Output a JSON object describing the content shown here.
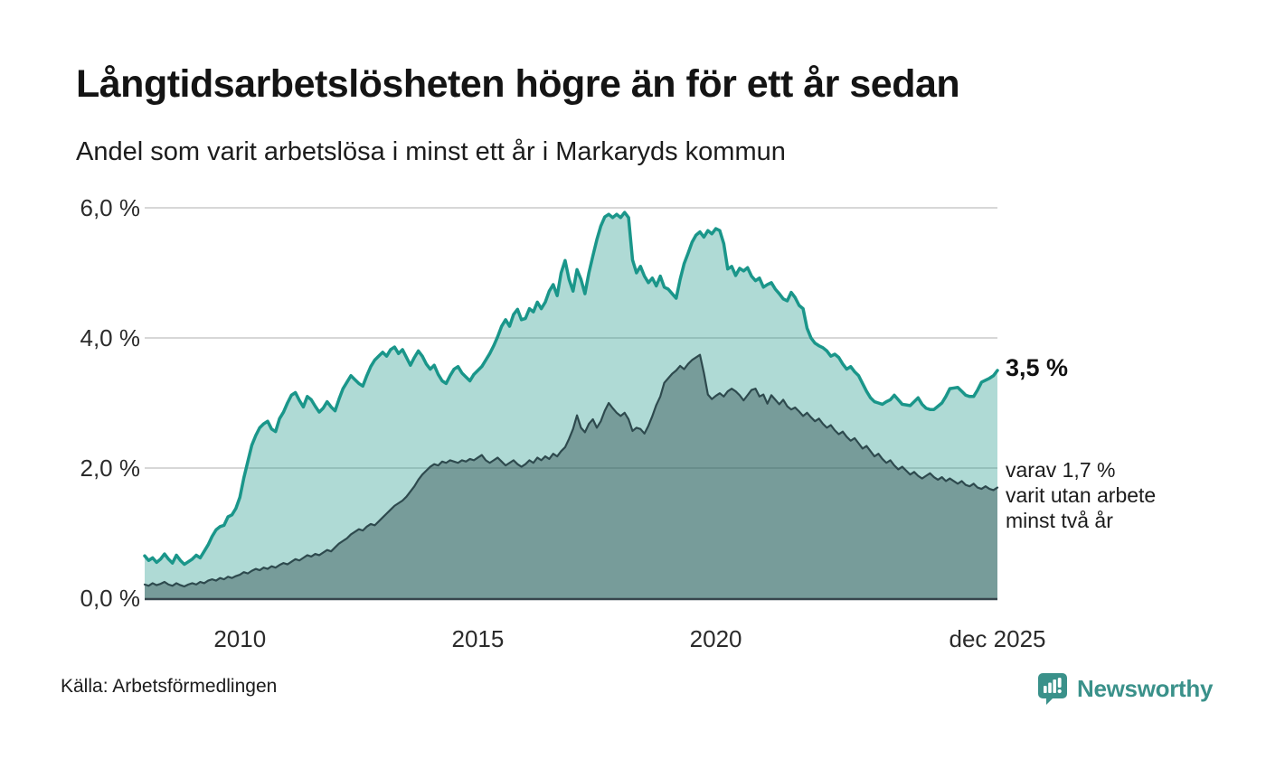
{
  "header": {
    "title": "Långtidsarbetslösheten högre än för ett år sedan",
    "subtitle": "Andel som varit arbetslösa i minst ett år i Markaryds kommun"
  },
  "annotations": {
    "latest_primary": "3,5 %",
    "latest_secondary": "varav 1,7 %\nvarit utan arbete\nminst två år"
  },
  "source": {
    "label": "Källa: Arbetsförmedlingen"
  },
  "brand": {
    "name": "Newsworthy",
    "color": "#3a918a"
  },
  "chart_data": {
    "type": "area",
    "title": "Andel som varit arbetslösa i minst ett år i Markaryds kommun",
    "x_unit": "month",
    "x_start": "2008-01",
    "x_end": "2025-12",
    "ylim": [
      0,
      6
    ],
    "grid": true,
    "yticks": [
      {
        "label": "0,0 %",
        "value": 0
      },
      {
        "label": "2,0 %",
        "value": 2
      },
      {
        "label": "4,0 %",
        "value": 4
      },
      {
        "label": "6,0 %",
        "value": 6
      }
    ],
    "xticks": [
      {
        "label": "2010",
        "month": "2010-01"
      },
      {
        "label": "2015",
        "month": "2015-01"
      },
      {
        "label": "2020",
        "month": "2020-01"
      },
      {
        "label": "dec 2025",
        "month": "2025-12"
      }
    ],
    "latest": {
      "minst_ett_ar": 3.5,
      "minst_tva_ar": 1.7
    },
    "colors": {
      "line_ett_ar": "#1a968a",
      "fill_ett_ar": "rgba(26,150,135,0.35)",
      "line_tva_ar": "#2e4a4e",
      "fill_tva_ar": "rgba(42,72,75,0.42)",
      "gridline": "#d7d7d7",
      "axis": "#37454c"
    },
    "series": [
      {
        "name": "Andel arbetslösa minst ett år",
        "color": "#1a968a",
        "fill": "rgba(26,150,135,0.35)",
        "stroke_width": 3.5,
        "values": [
          0.65,
          0.58,
          0.62,
          0.55,
          0.6,
          0.68,
          0.6,
          0.54,
          0.66,
          0.58,
          0.52,
          0.56,
          0.6,
          0.66,
          0.62,
          0.72,
          0.82,
          0.95,
          1.05,
          1.1,
          1.12,
          1.25,
          1.28,
          1.38,
          1.55,
          1.85,
          2.1,
          2.35,
          2.5,
          2.62,
          2.68,
          2.72,
          2.6,
          2.56,
          2.76,
          2.86,
          3.0,
          3.12,
          3.16,
          3.04,
          2.94,
          3.1,
          3.05,
          2.95,
          2.86,
          2.92,
          3.02,
          2.94,
          2.88,
          3.06,
          3.22,
          3.32,
          3.42,
          3.36,
          3.3,
          3.26,
          3.42,
          3.56,
          3.66,
          3.72,
          3.78,
          3.72,
          3.82,
          3.86,
          3.76,
          3.82,
          3.7,
          3.58,
          3.7,
          3.8,
          3.72,
          3.6,
          3.52,
          3.58,
          3.44,
          3.34,
          3.3,
          3.42,
          3.52,
          3.56,
          3.46,
          3.4,
          3.34,
          3.44,
          3.5,
          3.56,
          3.66,
          3.76,
          3.88,
          4.02,
          4.18,
          4.28,
          4.18,
          4.36,
          4.44,
          4.28,
          4.3,
          4.45,
          4.4,
          4.55,
          4.45,
          4.55,
          4.72,
          4.82,
          4.65,
          5.0,
          5.19,
          4.9,
          4.72,
          5.05,
          4.9,
          4.68,
          5.0,
          5.26,
          5.51,
          5.72,
          5.86,
          5.9,
          5.85,
          5.9,
          5.85,
          5.93,
          5.85,
          5.2,
          5.0,
          5.1,
          4.95,
          4.85,
          4.92,
          4.8,
          4.95,
          4.78,
          4.75,
          4.68,
          4.61,
          4.9,
          5.14,
          5.3,
          5.47,
          5.58,
          5.63,
          5.55,
          5.65,
          5.6,
          5.68,
          5.65,
          5.45,
          5.06,
          5.1,
          4.96,
          5.07,
          5.03,
          5.08,
          4.95,
          4.88,
          4.92,
          4.78,
          4.82,
          4.85,
          4.75,
          4.68,
          4.6,
          4.57,
          4.7,
          4.62,
          4.5,
          4.45,
          4.15,
          4.0,
          3.92,
          3.88,
          3.85,
          3.8,
          3.72,
          3.75,
          3.7,
          3.6,
          3.52,
          3.56,
          3.48,
          3.42,
          3.3,
          3.18,
          3.08,
          3.02,
          3.0,
          2.98,
          3.02,
          3.05,
          3.12,
          3.05,
          2.98,
          2.97,
          2.96,
          3.02,
          3.08,
          2.98,
          2.92,
          2.9,
          2.9,
          2.95,
          3.0,
          3.1,
          3.22,
          3.23,
          3.24,
          3.18,
          3.12,
          3.1,
          3.1,
          3.2,
          3.32,
          3.35,
          3.38,
          3.42,
          3.5
        ]
      },
      {
        "name": "Andel arbetslösa minst två år",
        "color": "#2e4a4e",
        "fill": "rgba(42,72,75,0.42)",
        "stroke_width": 2.2,
        "values": [
          0.21,
          0.19,
          0.23,
          0.2,
          0.22,
          0.25,
          0.21,
          0.19,
          0.23,
          0.2,
          0.18,
          0.21,
          0.23,
          0.21,
          0.25,
          0.23,
          0.27,
          0.29,
          0.27,
          0.31,
          0.29,
          0.33,
          0.31,
          0.34,
          0.36,
          0.4,
          0.38,
          0.42,
          0.45,
          0.43,
          0.47,
          0.45,
          0.49,
          0.47,
          0.51,
          0.54,
          0.52,
          0.56,
          0.6,
          0.58,
          0.62,
          0.66,
          0.64,
          0.68,
          0.66,
          0.7,
          0.74,
          0.72,
          0.78,
          0.84,
          0.88,
          0.92,
          0.98,
          1.02,
          1.06,
          1.04,
          1.1,
          1.14,
          1.12,
          1.18,
          1.24,
          1.3,
          1.36,
          1.42,
          1.46,
          1.5,
          1.56,
          1.64,
          1.72,
          1.82,
          1.9,
          1.96,
          2.02,
          2.06,
          2.04,
          2.1,
          2.08,
          2.12,
          2.1,
          2.08,
          2.12,
          2.1,
          2.14,
          2.12,
          2.16,
          2.2,
          2.12,
          2.08,
          2.12,
          2.16,
          2.1,
          2.04,
          2.08,
          2.12,
          2.06,
          2.02,
          2.06,
          2.12,
          2.08,
          2.16,
          2.12,
          2.18,
          2.14,
          2.22,
          2.18,
          2.26,
          2.32,
          2.45,
          2.6,
          2.81,
          2.62,
          2.55,
          2.68,
          2.75,
          2.62,
          2.72,
          2.88,
          3.0,
          2.92,
          2.85,
          2.8,
          2.85,
          2.75,
          2.57,
          2.62,
          2.6,
          2.53,
          2.65,
          2.8,
          2.97,
          3.1,
          3.31,
          3.38,
          3.45,
          3.5,
          3.57,
          3.52,
          3.6,
          3.66,
          3.7,
          3.74,
          3.46,
          3.13,
          3.06,
          3.11,
          3.15,
          3.1,
          3.18,
          3.22,
          3.18,
          3.12,
          3.04,
          3.12,
          3.2,
          3.22,
          3.1,
          3.13,
          2.99,
          3.12,
          3.05,
          2.98,
          3.05,
          2.95,
          2.9,
          2.93,
          2.87,
          2.8,
          2.85,
          2.78,
          2.72,
          2.76,
          2.68,
          2.62,
          2.66,
          2.58,
          2.52,
          2.56,
          2.48,
          2.42,
          2.46,
          2.38,
          2.3,
          2.34,
          2.26,
          2.18,
          2.22,
          2.14,
          2.08,
          2.12,
          2.04,
          1.98,
          2.02,
          1.96,
          1.9,
          1.94,
          1.88,
          1.84,
          1.88,
          1.92,
          1.86,
          1.82,
          1.86,
          1.8,
          1.84,
          1.8,
          1.76,
          1.8,
          1.74,
          1.72,
          1.76,
          1.7,
          1.68,
          1.72,
          1.68,
          1.66,
          1.7
        ]
      }
    ]
  }
}
